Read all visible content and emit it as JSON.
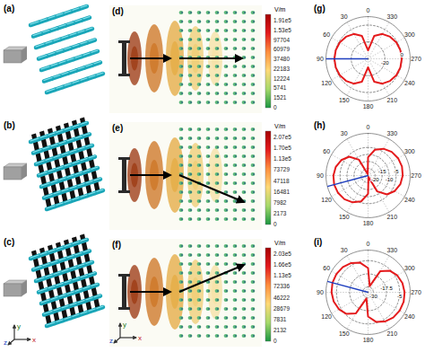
{
  "structures": [
    {
      "label": "(a)"
    },
    {
      "label": "(b)"
    },
    {
      "label": "(c)"
    }
  ],
  "axis_triad": [
    "y",
    "z",
    "x"
  ],
  "field_maps": [
    {
      "label": "(d)",
      "unit": "V/m",
      "colorbar_ticks": [
        {
          "value": 191000,
          "label": "1.91e5"
        },
        {
          "value": 153000,
          "label": "1.53e5"
        },
        97704,
        60979,
        37480,
        22183,
        12224,
        5741,
        1521,
        0
      ]
    },
    {
      "label": "(e)",
      "unit": "V/m",
      "colorbar_ticks": [
        {
          "value": 207000,
          "label": "2.07e5"
        },
        {
          "value": 170000,
          "label": "1.70e5"
        },
        {
          "value": 113000,
          "label": "1.13e5"
        },
        73729,
        47118,
        16481,
        7982,
        2173,
        0
      ]
    },
    {
      "label": "(f)",
      "unit": "V/m",
      "colorbar_ticks": [
        {
          "value": 203000,
          "label": "2.03e5"
        },
        {
          "value": 166000,
          "label": "1.66e5"
        },
        {
          "value": 113000,
          "label": "1.13e5"
        },
        72336,
        46222,
        28679,
        7831,
        2132,
        0
      ]
    }
  ],
  "chart_data": [
    {
      "type": "polar",
      "title": "(g)",
      "color": "#e41a1c",
      "theta": [
        0,
        15,
        30,
        45,
        60,
        75,
        90,
        105,
        120,
        135,
        150,
        165,
        180,
        195,
        210,
        225,
        240,
        255,
        270,
        285,
        300,
        315,
        330,
        345
      ],
      "values": [
        -30,
        -12,
        -6,
        -3,
        -1.2,
        -0.3,
        0,
        -0.3,
        -1.2,
        -3,
        -6,
        -12,
        -30,
        -12,
        -6,
        -3,
        -1.2,
        -0.3,
        0,
        -0.3,
        -1.2,
        -3,
        -6,
        -12
      ],
      "rlim": [
        -40,
        10
      ],
      "rticks": [
        -20,
        0
      ],
      "thetaticks": [
        0,
        30,
        60,
        90,
        120,
        150,
        180,
        210,
        240,
        270,
        300,
        330
      ],
      "main_lobe": 90
    },
    {
      "type": "polar",
      "title": "(h)",
      "color": "#e41a1c",
      "theta": [
        0,
        15,
        30,
        45,
        60,
        75,
        90,
        105,
        120,
        135,
        150,
        165,
        180,
        195,
        210,
        225,
        240,
        255,
        270,
        285,
        300,
        315,
        330,
        345
      ],
      "values": [
        -12,
        -24,
        -12,
        -6,
        -3,
        -1.2,
        -0.3,
        0,
        -0.3,
        -1.2,
        -3,
        -6,
        -12,
        -24,
        -12,
        -6,
        -3,
        -1.2,
        -0.3,
        0,
        -0.3,
        -1.2,
        -3,
        -6
      ],
      "rlim": [
        -25,
        5
      ],
      "rticks": [
        -20,
        -15,
        -10,
        -5
      ],
      "thetaticks": [
        0,
        30,
        60,
        90,
        120,
        150,
        180,
        210,
        240,
        270,
        300,
        330
      ],
      "main_lobe": 105
    },
    {
      "type": "polar",
      "title": "(i)",
      "color": "#e41a1c",
      "theta": [
        0,
        15,
        30,
        45,
        60,
        75,
        90,
        105,
        120,
        135,
        150,
        165,
        180,
        195,
        210,
        225,
        240,
        255,
        270,
        285,
        300,
        315,
        330,
        345
      ],
      "values": [
        -12,
        -6,
        -3,
        -1.2,
        -0.3,
        0,
        -0.3,
        -1.2,
        -3,
        -6,
        -12,
        -29,
        -12,
        -6,
        -3,
        -1.2,
        -0.3,
        0,
        -0.3,
        -1.2,
        -3,
        -6,
        -12,
        -29
      ],
      "rlim": [
        -35,
        5
      ],
      "rticks": [
        -30,
        -17.5,
        -5
      ],
      "thetaticks": [
        0,
        30,
        60,
        90,
        120,
        150,
        180,
        210,
        240,
        270,
        300,
        330
      ],
      "main_lobe": 75
    }
  ]
}
